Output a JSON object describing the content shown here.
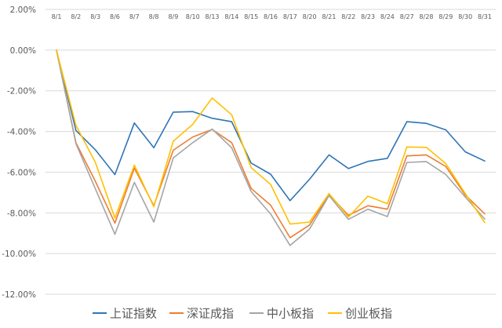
{
  "chart_data": {
    "type": "line",
    "categories": [
      "8/1",
      "8/2",
      "8/3",
      "8/6",
      "8/7",
      "8/8",
      "8/9",
      "8/10",
      "8/13",
      "8/14",
      "8/15",
      "8/16",
      "8/17",
      "8/20",
      "8/21",
      "8/22",
      "8/23",
      "8/24",
      "8/27",
      "8/28",
      "8/29",
      "8/30",
      "8/31"
    ],
    "series": [
      {
        "name": "上证指数",
        "color": "#2e75b6",
        "values": [
          0.0,
          -3.95,
          -4.9,
          -6.12,
          -3.58,
          -4.8,
          -3.05,
          -3.02,
          -3.35,
          -3.52,
          -5.55,
          -6.1,
          -7.4,
          -6.35,
          -5.15,
          -5.82,
          -5.47,
          -5.32,
          -3.52,
          -3.6,
          -3.92,
          -5.0,
          -5.45
        ]
      },
      {
        "name": "深证成指",
        "color": "#ed7d31",
        "values": [
          0.0,
          -4.55,
          -6.45,
          -8.5,
          -5.8,
          -7.65,
          -4.92,
          -4.27,
          -3.9,
          -4.55,
          -6.8,
          -7.62,
          -9.22,
          -8.6,
          -7.1,
          -8.12,
          -7.65,
          -7.82,
          -5.2,
          -5.15,
          -5.72,
          -7.12,
          -8.05
        ]
      },
      {
        "name": "中小板指",
        "color": "#a5a5a5",
        "values": [
          0.0,
          -4.6,
          -6.82,
          -9.05,
          -6.5,
          -8.45,
          -5.3,
          -4.55,
          -3.88,
          -4.8,
          -6.95,
          -8.05,
          -9.6,
          -8.8,
          -7.15,
          -8.32,
          -7.82,
          -8.18,
          -5.52,
          -5.48,
          -6.12,
          -7.22,
          -8.3
        ]
      },
      {
        "name": "创业板指",
        "color": "#ffc000",
        "values": [
          0.0,
          -3.7,
          -5.52,
          -8.25,
          -5.65,
          -7.7,
          -4.48,
          -3.65,
          -2.35,
          -3.18,
          -5.78,
          -6.6,
          -8.55,
          -8.45,
          -7.05,
          -8.2,
          -7.18,
          -7.55,
          -4.76,
          -4.78,
          -5.58,
          -7.05,
          -8.48
        ]
      }
    ],
    "yticks": [
      "2.00%",
      "0.00%",
      "-2.00%",
      "-4.00%",
      "-6.00%",
      "-8.00%",
      "-10.00%",
      "-12.00%"
    ],
    "ylim": [
      -12,
      2
    ],
    "grid": true,
    "legend_position": "bottom"
  }
}
